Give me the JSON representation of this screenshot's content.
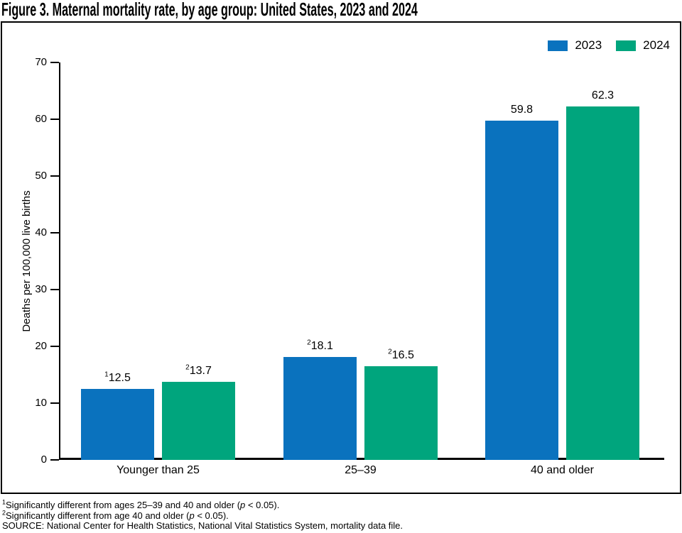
{
  "title": "Figure 3. Maternal mortality rate, by age group: United States, 2023 and 2024",
  "chart_data": {
    "type": "bar",
    "categories": [
      "Younger than 25",
      "25–39",
      "40 and older"
    ],
    "series": [
      {
        "name": "2023",
        "color": "#0A72BE",
        "values": [
          12.5,
          18.1,
          59.8
        ],
        "value_label_sups": [
          "1",
          "2",
          ""
        ]
      },
      {
        "name": "2024",
        "color": "#00A57D",
        "values": [
          13.7,
          16.5,
          62.3
        ],
        "value_label_sups": [
          "2",
          "2",
          ""
        ]
      }
    ],
    "title": "Figure 3. Maternal mortality rate, by age group: United States, 2023 and 2024",
    "xlabel": "",
    "ylabel": "Deaths per 100,000 live births",
    "ylim": [
      0,
      70
    ],
    "yticks": [
      0,
      10,
      20,
      30,
      40,
      50,
      60,
      70
    ],
    "grid": false,
    "legend_position": "top-right"
  },
  "colors": {
    "series_2023": "#0A72BE",
    "series_2024": "#00A57D",
    "axis": "#000000",
    "text": "#000000",
    "frame_border": "#000000",
    "background": "#FFFFFF"
  },
  "footnotes": [
    {
      "sup": "1",
      "pre": "Significantly different from ages 25–39 and 40 and older (",
      "italic": "p",
      "post": " < 0.05)."
    },
    {
      "sup": "2",
      "pre": "Significantly different from age 40 and older (",
      "italic": "p",
      "post": " < 0.05)."
    },
    {
      "sup": "",
      "pre": "SOURCE: National Center for Health Statistics, National Vital Statistics System, mortality data file.",
      "italic": "",
      "post": ""
    }
  ]
}
